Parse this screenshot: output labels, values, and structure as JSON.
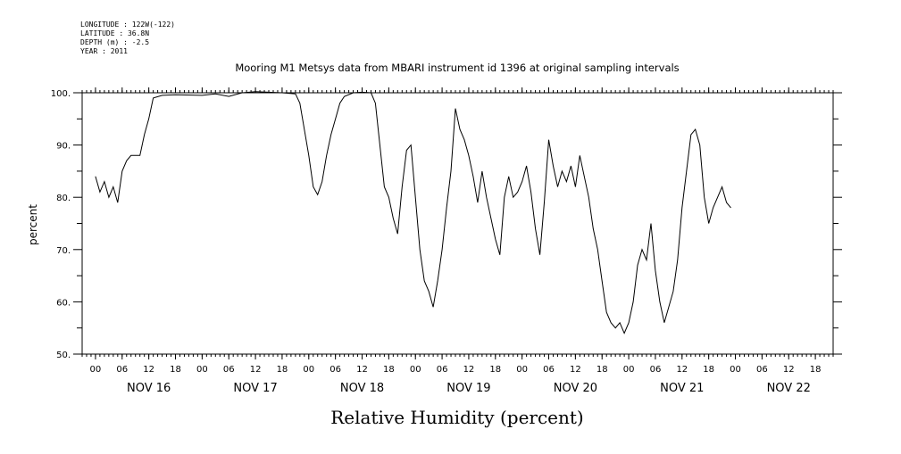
{
  "header": {
    "meta_lines": [
      "LONGITUDE : 122W(-122)",
      "LATITUDE : 36.8N",
      "DEPTH (m) : -2.5",
      "YEAR : 2011"
    ]
  },
  "chart_data": {
    "type": "line",
    "title": "Mooring M1 Metsys data from MBARI instrument id 1396 at original sampling intervals",
    "xlabel": "Relative Humidity (percent)",
    "ylabel": "percent",
    "ylim": [
      50,
      100
    ],
    "xlim": [
      "2011-11-15T21:00",
      "2011-11-22T22:00"
    ],
    "y_major_ticks": [
      "50.",
      "60.",
      "70.",
      "80.",
      "90.",
      "100."
    ],
    "y_major_values": [
      50,
      60,
      70,
      80,
      90,
      100
    ],
    "x_hour_labels": [
      "00",
      "06",
      "12",
      "18",
      "00",
      "06",
      "12",
      "18",
      "00",
      "06",
      "12",
      "18",
      "00",
      "06",
      "12",
      "18",
      "00",
      "06",
      "12",
      "18",
      "00",
      "06",
      "12",
      "18",
      "00",
      "06",
      "12",
      "18"
    ],
    "x_hour_times": [
      "2011-11-16T00:00",
      "2011-11-16T06:00",
      "2011-11-16T12:00",
      "2011-11-16T18:00",
      "2011-11-17T00:00",
      "2011-11-17T06:00",
      "2011-11-17T12:00",
      "2011-11-17T18:00",
      "2011-11-18T00:00",
      "2011-11-18T06:00",
      "2011-11-18T12:00",
      "2011-11-18T18:00",
      "2011-11-19T00:00",
      "2011-11-19T06:00",
      "2011-11-19T12:00",
      "2011-11-19T18:00",
      "2011-11-20T00:00",
      "2011-11-20T06:00",
      "2011-11-20T12:00",
      "2011-11-20T18:00",
      "2011-11-21T00:00",
      "2011-11-21T06:00",
      "2011-11-21T12:00",
      "2011-11-21T18:00",
      "2011-11-22T00:00",
      "2011-11-22T06:00",
      "2011-11-22T12:00",
      "2011-11-22T18:00"
    ],
    "x_day_labels": [
      "NOV 16",
      "NOV 17",
      "NOV 18",
      "NOV 19",
      "NOV 20",
      "NOV 21",
      "NOV 22"
    ],
    "x_day_times": [
      "2011-11-16T12:00",
      "2011-11-17T12:00",
      "2011-11-18T12:00",
      "2011-11-19T12:00",
      "2011-11-20T12:00",
      "2011-11-21T12:00",
      "2011-11-22T12:00"
    ],
    "grid": false,
    "legend": "none",
    "series": [
      {
        "color": "#000000",
        "points": [
          [
            "2011-11-16T00:00",
            84
          ],
          [
            "2011-11-16T01:00",
            81
          ],
          [
            "2011-11-16T02:00",
            83
          ],
          [
            "2011-11-16T03:00",
            80
          ],
          [
            "2011-11-16T04:00",
            82
          ],
          [
            "2011-11-16T05:00",
            79
          ],
          [
            "2011-11-16T06:00",
            85
          ],
          [
            "2011-11-16T07:00",
            87
          ],
          [
            "2011-11-16T08:00",
            88
          ],
          [
            "2011-11-16T09:00",
            88
          ],
          [
            "2011-11-16T10:00",
            88
          ],
          [
            "2011-11-16T11:00",
            92
          ],
          [
            "2011-11-16T12:00",
            95
          ],
          [
            "2011-11-16T13:00",
            99
          ],
          [
            "2011-11-16T15:00",
            99.5
          ],
          [
            "2011-11-16T18:00",
            99.6
          ],
          [
            "2011-11-17T00:00",
            99.5
          ],
          [
            "2011-11-17T03:00",
            99.8
          ],
          [
            "2011-11-17T06:00",
            99.3
          ],
          [
            "2011-11-17T09:00",
            100
          ],
          [
            "2011-11-17T12:00",
            100.2
          ],
          [
            "2011-11-17T15:00",
            100.1
          ],
          [
            "2011-11-17T18:00",
            100
          ],
          [
            "2011-11-17T21:00",
            99.8
          ],
          [
            "2011-11-17T22:00",
            98
          ],
          [
            "2011-11-18T00:00",
            88
          ],
          [
            "2011-11-18T01:00",
            82
          ],
          [
            "2011-11-18T02:00",
            80.5
          ],
          [
            "2011-11-18T03:00",
            83
          ],
          [
            "2011-11-18T04:00",
            88
          ],
          [
            "2011-11-18T05:00",
            92
          ],
          [
            "2011-11-18T06:00",
            95
          ],
          [
            "2011-11-18T07:00",
            98
          ],
          [
            "2011-11-18T08:00",
            99.3
          ],
          [
            "2011-11-18T10:00",
            100
          ],
          [
            "2011-11-18T12:00",
            100.1
          ],
          [
            "2011-11-18T14:00",
            100
          ],
          [
            "2011-11-18T15:00",
            98
          ],
          [
            "2011-11-18T16:00",
            90
          ],
          [
            "2011-11-18T17:00",
            82
          ],
          [
            "2011-11-18T18:00",
            80
          ],
          [
            "2011-11-18T19:00",
            76
          ],
          [
            "2011-11-18T20:00",
            73
          ],
          [
            "2011-11-18T21:00",
            82
          ],
          [
            "2011-11-18T22:00",
            89
          ],
          [
            "2011-11-18T23:00",
            90
          ],
          [
            "2011-11-19T00:00",
            80
          ],
          [
            "2011-11-19T01:00",
            70
          ],
          [
            "2011-11-19T02:00",
            64
          ],
          [
            "2011-11-19T03:00",
            62
          ],
          [
            "2011-11-19T04:00",
            59
          ],
          [
            "2011-11-19T05:00",
            64
          ],
          [
            "2011-11-19T06:00",
            70
          ],
          [
            "2011-11-19T07:00",
            78
          ],
          [
            "2011-11-19T08:00",
            85
          ],
          [
            "2011-11-19T09:00",
            97
          ],
          [
            "2011-11-19T10:00",
            93
          ],
          [
            "2011-11-19T11:00",
            91
          ],
          [
            "2011-11-19T12:00",
            88
          ],
          [
            "2011-11-19T13:00",
            84
          ],
          [
            "2011-11-19T14:00",
            79
          ],
          [
            "2011-11-19T15:00",
            85
          ],
          [
            "2011-11-19T16:00",
            80
          ],
          [
            "2011-11-19T17:00",
            76
          ],
          [
            "2011-11-19T18:00",
            72
          ],
          [
            "2011-11-19T19:00",
            69
          ],
          [
            "2011-11-19T20:00",
            80
          ],
          [
            "2011-11-19T21:00",
            84
          ],
          [
            "2011-11-19T22:00",
            80
          ],
          [
            "2011-11-19T23:00",
            81
          ],
          [
            "2011-11-20T00:00",
            83
          ],
          [
            "2011-11-20T01:00",
            86
          ],
          [
            "2011-11-20T02:00",
            81
          ],
          [
            "2011-11-20T03:00",
            74
          ],
          [
            "2011-11-20T04:00",
            69
          ],
          [
            "2011-11-20T05:00",
            79
          ],
          [
            "2011-11-20T06:00",
            91
          ],
          [
            "2011-11-20T07:00",
            86
          ],
          [
            "2011-11-20T08:00",
            82
          ],
          [
            "2011-11-20T09:00",
            85
          ],
          [
            "2011-11-20T10:00",
            83
          ],
          [
            "2011-11-20T11:00",
            86
          ],
          [
            "2011-11-20T12:00",
            82
          ],
          [
            "2011-11-20T13:00",
            88
          ],
          [
            "2011-11-20T14:00",
            84
          ],
          [
            "2011-11-20T15:00",
            80
          ],
          [
            "2011-11-20T16:00",
            74
          ],
          [
            "2011-11-20T17:00",
            70
          ],
          [
            "2011-11-20T18:00",
            64
          ],
          [
            "2011-11-20T19:00",
            58
          ],
          [
            "2011-11-20T20:00",
            56
          ],
          [
            "2011-11-20T21:00",
            55
          ],
          [
            "2011-11-20T22:00",
            56
          ],
          [
            "2011-11-20T23:00",
            54
          ],
          [
            "2011-11-21T00:00",
            56
          ],
          [
            "2011-11-21T01:00",
            60
          ],
          [
            "2011-11-21T02:00",
            67
          ],
          [
            "2011-11-21T03:00",
            70
          ],
          [
            "2011-11-21T04:00",
            68
          ],
          [
            "2011-11-21T05:00",
            75
          ],
          [
            "2011-11-21T06:00",
            66
          ],
          [
            "2011-11-21T07:00",
            60
          ],
          [
            "2011-11-21T08:00",
            56
          ],
          [
            "2011-11-21T09:00",
            59
          ],
          [
            "2011-11-21T10:00",
            62
          ],
          [
            "2011-11-21T11:00",
            68
          ],
          [
            "2011-11-21T12:00",
            78
          ],
          [
            "2011-11-21T13:00",
            85
          ],
          [
            "2011-11-21T14:00",
            92
          ],
          [
            "2011-11-21T15:00",
            93
          ],
          [
            "2011-11-21T16:00",
            90
          ],
          [
            "2011-11-21T17:00",
            80
          ],
          [
            "2011-11-21T18:00",
            75
          ],
          [
            "2011-11-21T19:00",
            78
          ],
          [
            "2011-11-21T20:00",
            80
          ],
          [
            "2011-11-21T21:00",
            82
          ],
          [
            "2011-11-21T22:00",
            79
          ],
          [
            "2011-11-21T23:00",
            78
          ]
        ]
      }
    ]
  }
}
